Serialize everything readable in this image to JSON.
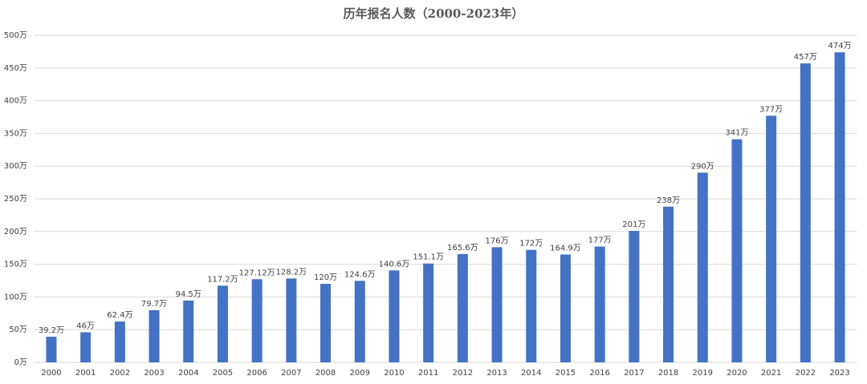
{
  "chart_data": {
    "type": "bar",
    "title": "历年报名人数（2000-2023年）",
    "categories": [
      "2000",
      "2001",
      "2002",
      "2003",
      "2004",
      "2005",
      "2006",
      "2007",
      "2008",
      "2009",
      "2010",
      "2011",
      "2012",
      "2013",
      "2014",
      "2015",
      "2016",
      "2017",
      "2018",
      "2019",
      "2020",
      "2021",
      "2022",
      "2023"
    ],
    "values": [
      39.2,
      46,
      62.4,
      79.7,
      94.5,
      117.2,
      127.12,
      128.2,
      120,
      124.6,
      140.6,
      151.1,
      165.6,
      176,
      172,
      164.9,
      177,
      201,
      238,
      290,
      341,
      377,
      457,
      474
    ],
    "value_labels": [
      "39.2万",
      "46万",
      "62.4万",
      "79.7万",
      "94.5万",
      "117.2万",
      "127.12万",
      "128.2万",
      "120万",
      "124.6万",
      "140.6万",
      "151.1万",
      "165.6万",
      "176万",
      "172万",
      "164.9万",
      "177万",
      "201万",
      "238万",
      "290万",
      "341万",
      "377万",
      "457万",
      "474万"
    ],
    "color": "#4472c4",
    "ylim": [
      0,
      500
    ],
    "yticks": [
      {
        "value": 0,
        "label": "0万"
      },
      {
        "value": 50,
        "label": "50万"
      },
      {
        "value": 100,
        "label": "100万"
      },
      {
        "value": 150,
        "label": "150万"
      },
      {
        "value": 200,
        "label": "200万"
      },
      {
        "value": 250,
        "label": "250万"
      },
      {
        "value": 300,
        "label": "300万"
      },
      {
        "value": 350,
        "label": "350万"
      },
      {
        "value": 400,
        "label": "400万"
      },
      {
        "value": 450,
        "label": "450万"
      },
      {
        "value": 500,
        "label": "500万"
      }
    ],
    "grid": true
  }
}
